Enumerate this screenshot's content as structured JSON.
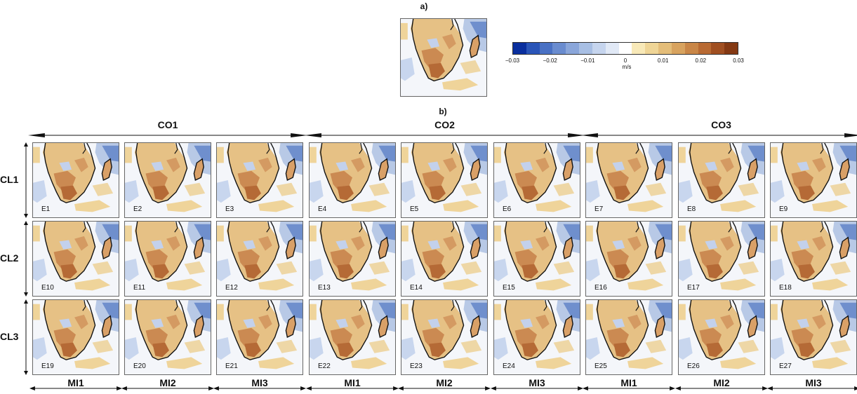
{
  "panel_a_label": "a)",
  "panel_b_label": "b)",
  "colorbar": {
    "ticks": [
      "−0.03",
      "−0.02",
      "−0.01",
      "0",
      "0.01",
      "0.02",
      "0.03"
    ],
    "unit": "m/s",
    "colors": [
      "#0a2f9e",
      "#2a55b8",
      "#4a71c4",
      "#6a8ccf",
      "#8aa6da",
      "#a8bfe4",
      "#c6d5ee",
      "#e1e9f6",
      "#ffffff",
      "#f8e9b8",
      "#efd596",
      "#e4bd79",
      "#d8a35f",
      "#c98647",
      "#b86a33",
      "#a04f21",
      "#843913"
    ]
  },
  "columns": {
    "top_groups": [
      "CO1",
      "CO2",
      "CO3"
    ],
    "bottom_labels": [
      "MI1",
      "MI2",
      "MI3",
      "MI1",
      "MI2",
      "MI3",
      "MI1",
      "MI2",
      "MI3"
    ]
  },
  "rows": [
    "CL1",
    "CL2",
    "CL3"
  ],
  "panels": [
    "E1",
    "E2",
    "E3",
    "E4",
    "E5",
    "E6",
    "E7",
    "E8",
    "E9",
    "E10",
    "E11",
    "E12",
    "E13",
    "E14",
    "E15",
    "E16",
    "E17",
    "E18",
    "E19",
    "E20",
    "E21",
    "E22",
    "E23",
    "E24",
    "E25",
    "E26",
    "E27"
  ]
}
